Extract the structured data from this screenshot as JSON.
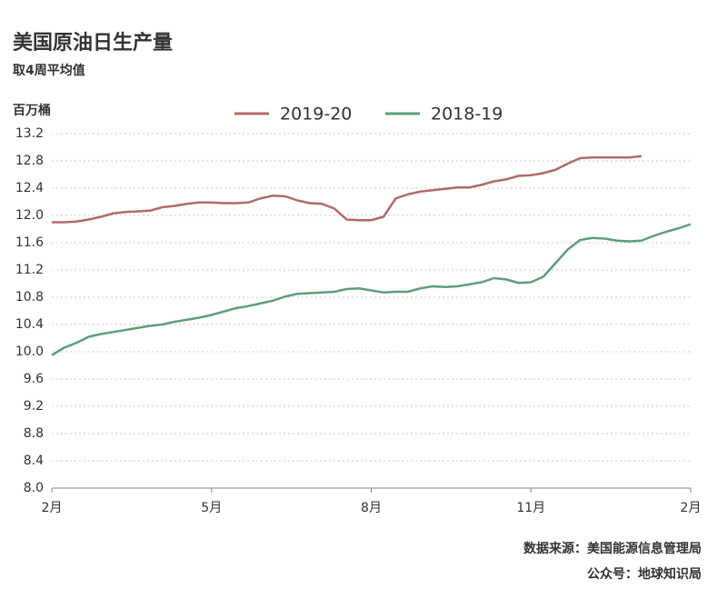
{
  "chart_data": {
    "type": "line",
    "title": "美国原油日生产量",
    "subtitle": "取4周平均值",
    "y_label": "百万桶",
    "source": "数据来源：美国能源信息管理局",
    "account": "公众号：地球知识局",
    "categories": [
      "2月",
      null,
      null,
      null,
      null,
      null,
      null,
      null,
      null,
      null,
      null,
      null,
      null,
      "5月",
      null,
      null,
      null,
      null,
      null,
      null,
      null,
      null,
      null,
      null,
      null,
      null,
      "8月",
      null,
      null,
      null,
      null,
      null,
      null,
      null,
      null,
      null,
      null,
      null,
      null,
      "11月",
      null,
      null,
      null,
      null,
      null,
      null,
      null,
      null,
      null,
      null,
      null,
      null,
      "2月"
    ],
    "series": [
      {
        "name": "2019-20",
        "color": "#b06a6a",
        "values": [
          11.9,
          11.9,
          11.91,
          11.94,
          11.98,
          12.03,
          12.05,
          12.06,
          12.07,
          12.12,
          12.14,
          12.17,
          12.19,
          12.19,
          12.18,
          12.18,
          12.19,
          12.25,
          12.29,
          12.28,
          12.22,
          12.18,
          12.17,
          12.1,
          11.94,
          11.93,
          11.93,
          11.98,
          12.25,
          12.31,
          12.35,
          12.37,
          12.39,
          12.41,
          12.41,
          12.45,
          12.5,
          12.53,
          12.58,
          12.59,
          12.62,
          12.67,
          12.76,
          12.84,
          12.85,
          12.85,
          12.85,
          12.85,
          12.87,
          null,
          null,
          null,
          null
        ]
      },
      {
        "name": "2018-19",
        "color": "#5f9e7a",
        "values": [
          9.95,
          10.06,
          10.13,
          10.22,
          10.26,
          10.29,
          10.32,
          10.35,
          10.38,
          10.4,
          10.44,
          10.47,
          10.5,
          10.54,
          10.59,
          10.64,
          10.67,
          10.71,
          10.75,
          10.81,
          10.85,
          10.86,
          10.87,
          10.88,
          10.92,
          10.93,
          10.9,
          10.87,
          10.88,
          10.88,
          10.93,
          10.96,
          10.95,
          10.96,
          10.99,
          11.02,
          11.08,
          11.06,
          11.01,
          11.02,
          11.1,
          11.3,
          11.5,
          11.64,
          11.67,
          11.66,
          11.63,
          11.62,
          11.63,
          11.7,
          11.76,
          11.81,
          11.87
        ]
      }
    ],
    "ylim": [
      8.0,
      13.2
    ],
    "yticks": [
      {
        "value": 8,
        "label": "8.0"
      },
      8.4,
      8.8,
      9.2,
      9.6,
      {
        "value": 10,
        "label": "10.0"
      },
      10.4,
      10.8,
      11.2,
      11.6,
      {
        "value": 12,
        "label": "12.0"
      },
      12.4,
      12.8,
      13.2
    ],
    "grid": true,
    "legend": "top"
  }
}
